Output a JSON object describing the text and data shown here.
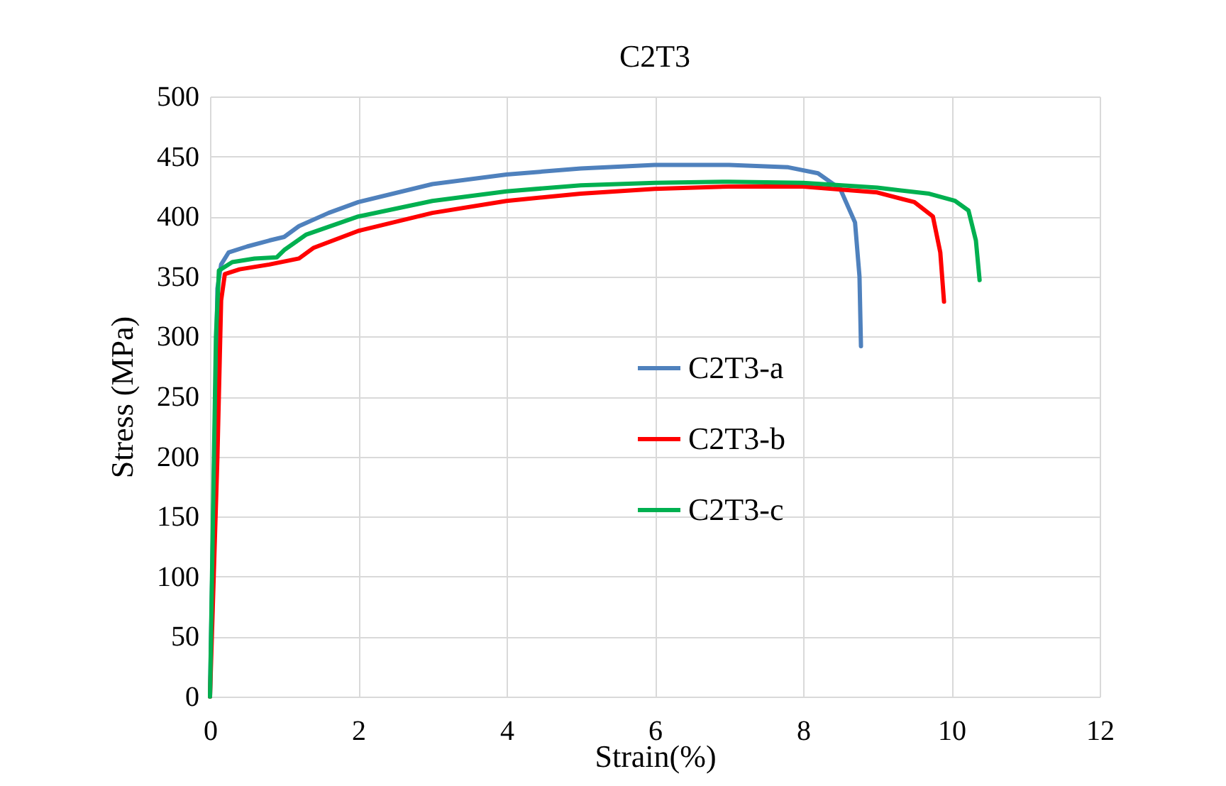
{
  "chart_data": {
    "type": "line",
    "title": "C2T3",
    "xlabel": "Strain(%)",
    "ylabel": "Stress (MPa)",
    "xlim": [
      0,
      12
    ],
    "ylim": [
      0,
      500
    ],
    "xticks": [
      0,
      2,
      4,
      6,
      8,
      10,
      12
    ],
    "yticks": [
      0,
      50,
      100,
      150,
      200,
      250,
      300,
      350,
      400,
      450,
      500
    ],
    "grid": true,
    "legend": "right",
    "marker": "none",
    "line_style": "solid",
    "series": [
      {
        "name": "C2T3-a",
        "color": "#4f81bd",
        "x": [
          0,
          0.1,
          0.15,
          0.25,
          0.5,
          0.8,
          1.0,
          1.2,
          1.6,
          2,
          3,
          4,
          5,
          6,
          7,
          7.8,
          8.2,
          8.5,
          8.7,
          8.76,
          8.78
        ],
        "values": [
          0,
          340,
          360,
          370,
          375,
          380,
          383,
          392,
          403,
          412,
          427,
          435,
          440,
          443,
          443,
          441,
          436,
          423,
          395,
          350,
          292
        ]
      },
      {
        "name": "C2T3-b",
        "color": "#ff0000",
        "x": [
          0,
          0.1,
          0.15,
          0.2,
          0.4,
          0.8,
          1.2,
          1.4,
          2,
          3,
          4,
          5,
          6,
          7,
          8,
          9,
          9.5,
          9.75,
          9.85,
          9.9
        ],
        "values": [
          0,
          200,
          330,
          352,
          356,
          360,
          365,
          374,
          388,
          403,
          413,
          419,
          423,
          425,
          425,
          420,
          412,
          400,
          370,
          329
        ]
      },
      {
        "name": "C2T3-c",
        "color": "#00b050",
        "x": [
          0,
          0.08,
          0.12,
          0.3,
          0.6,
          0.9,
          1.0,
          1.3,
          2,
          3,
          4,
          5,
          6,
          7,
          8,
          9,
          9.7,
          10.05,
          10.23,
          10.33,
          10.38
        ],
        "values": [
          0,
          300,
          355,
          362,
          365,
          366,
          372,
          385,
          400,
          413,
          421,
          426,
          428,
          429,
          428,
          424,
          419,
          413,
          405,
          380,
          347
        ]
      }
    ]
  }
}
